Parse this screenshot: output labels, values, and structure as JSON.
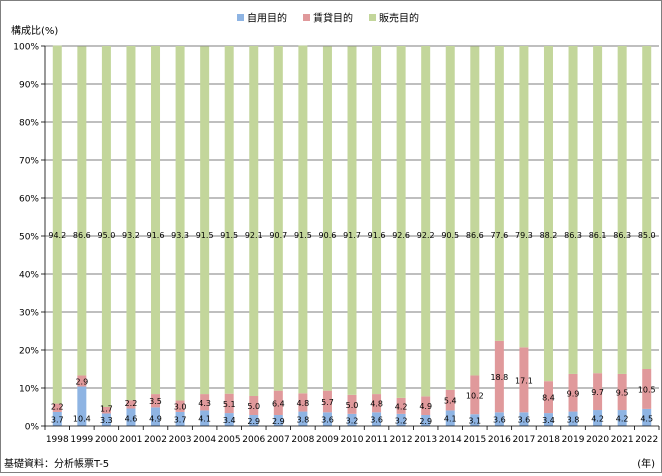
{
  "chart_data": {
    "type": "bar",
    "stacked": true,
    "percent_stacked": true,
    "ylabel": "構成比(%)",
    "xunit": "(年)",
    "source": "基礎資料：分析帳票T-5",
    "ylim": [
      0,
      100
    ],
    "yticks": [
      "0%",
      "10%",
      "20%",
      "30%",
      "40%",
      "50%",
      "60%",
      "70%",
      "80%",
      "90%",
      "100%"
    ],
    "grid": "horizontal",
    "legend_position": "top-center",
    "categories": [
      "1998",
      "1999",
      "2000",
      "2001",
      "2002",
      "2003",
      "2004",
      "2005",
      "2006",
      "2007",
      "2008",
      "2009",
      "2010",
      "2011",
      "2012",
      "2013",
      "2014",
      "2015",
      "2016",
      "2017",
      "2018",
      "2019",
      "2020",
      "2021",
      "2022"
    ],
    "series": [
      {
        "name": "自用目的",
        "color": "#8eb4e3",
        "values": [
          3.7,
          10.4,
          3.3,
          4.6,
          4.9,
          3.7,
          4.1,
          3.4,
          2.9,
          2.9,
          3.8,
          3.6,
          3.2,
          3.6,
          3.2,
          2.9,
          4.1,
          3.1,
          3.6,
          3.6,
          3.4,
          3.8,
          4.2,
          4.2,
          4.5
        ]
      },
      {
        "name": "賃貸目的",
        "color": "#e0999b",
        "values": [
          2.2,
          2.9,
          1.7,
          2.2,
          3.5,
          3.0,
          4.3,
          5.1,
          5.0,
          6.4,
          4.8,
          5.7,
          5.0,
          4.8,
          4.2,
          4.9,
          5.4,
          10.2,
          18.8,
          17.1,
          8.4,
          9.9,
          9.7,
          9.5,
          10.5
        ]
      },
      {
        "name": "販売目的",
        "color": "#c3d69b",
        "values": [
          94.2,
          86.6,
          95.0,
          93.2,
          91.6,
          93.3,
          91.5,
          91.5,
          92.1,
          90.7,
          91.5,
          90.6,
          91.7,
          91.6,
          92.6,
          92.2,
          90.5,
          86.6,
          77.6,
          79.3,
          88.2,
          86.3,
          86.1,
          86.3,
          85.0
        ]
      }
    ]
  }
}
